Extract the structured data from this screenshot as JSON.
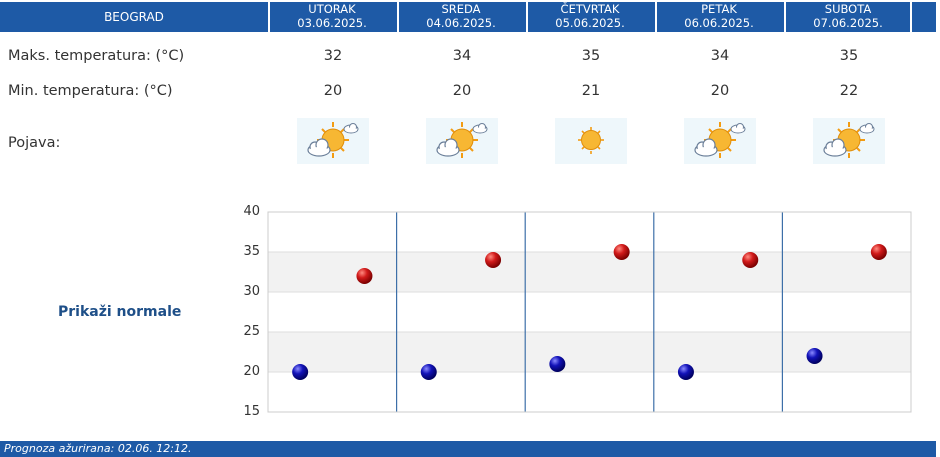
{
  "header": {
    "city": "BEOGRAD",
    "days": [
      {
        "name": "UTORAK",
        "date": "03.06.2025."
      },
      {
        "name": "SREDA",
        "date": "04.06.2025."
      },
      {
        "name": "ČETVRTAK",
        "date": "05.06.2025."
      },
      {
        "name": "PETAK",
        "date": "06.06.2025."
      },
      {
        "name": "SUBOTA",
        "date": "07.06.2025."
      }
    ]
  },
  "rows": {
    "max_label": "Maks. temperatura: (°C)",
    "min_label": "Min. temperatura: (°C)",
    "phenomenon_label": "Pojava:",
    "max_values": [
      "32",
      "34",
      "35",
      "34",
      "35"
    ],
    "min_values": [
      "20",
      "20",
      "21",
      "20",
      "22"
    ],
    "icons": [
      "partly-cloudy-sun-icon",
      "partly-cloudy-sun-icon",
      "sun-icon",
      "partly-cloudy-sun-icon",
      "partly-cloudy-sun-icon"
    ]
  },
  "show_normals_label": "Prikaži normale",
  "footer": {
    "updated_text": "Prognoza ažurirana:  02.06. 12:12."
  },
  "colors": {
    "header_bg": "#1e5aa6",
    "max_marker": "#cc1111",
    "min_marker": "#1111aa",
    "link": "#1e4f88"
  },
  "chart_data": {
    "type": "scatter",
    "categories": [
      "UTORAK",
      "SREDA",
      "ČETVRTAK",
      "PETAK",
      "SUBOTA"
    ],
    "series": [
      {
        "values": [
          20,
          20,
          21,
          20,
          22
        ]
      },
      {
        "values": [
          32,
          34,
          35,
          34,
          35
        ]
      }
    ],
    "ylim": [
      15,
      40
    ],
    "yticks": [
      "40",
      "35",
      "30",
      "25",
      "20",
      "15"
    ],
    "grid": true,
    "alternating_bands": true
  }
}
